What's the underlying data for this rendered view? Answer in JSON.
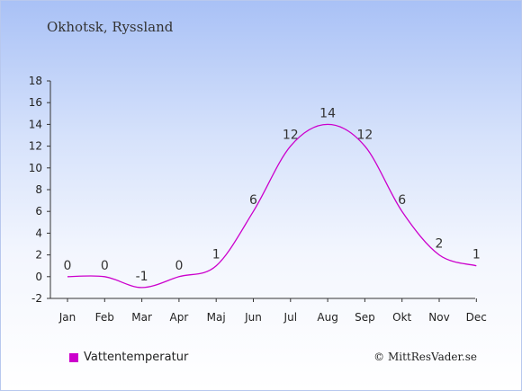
{
  "header": {
    "title": "Okhotsk, Ryssland"
  },
  "legend": {
    "label": "Vattentemperatur",
    "color": "#cc00cc"
  },
  "credit": "© MittResVader.se",
  "chart_data": {
    "type": "line",
    "categories": [
      "Jan",
      "Feb",
      "Mar",
      "Apr",
      "Maj",
      "Jun",
      "Jul",
      "Aug",
      "Sep",
      "Okt",
      "Nov",
      "Dec"
    ],
    "series": [
      {
        "name": "Vattentemperatur",
        "values": [
          0,
          0,
          -1,
          0,
          1,
          6,
          12,
          14,
          12,
          6,
          2,
          1
        ],
        "color": "#cc00cc"
      }
    ],
    "ylim": [
      -2,
      18
    ],
    "yticks": [
      -2,
      0,
      2,
      4,
      6,
      8,
      10,
      12,
      14,
      16,
      18
    ],
    "data_labels": true,
    "legend_position": "bottom-left"
  }
}
